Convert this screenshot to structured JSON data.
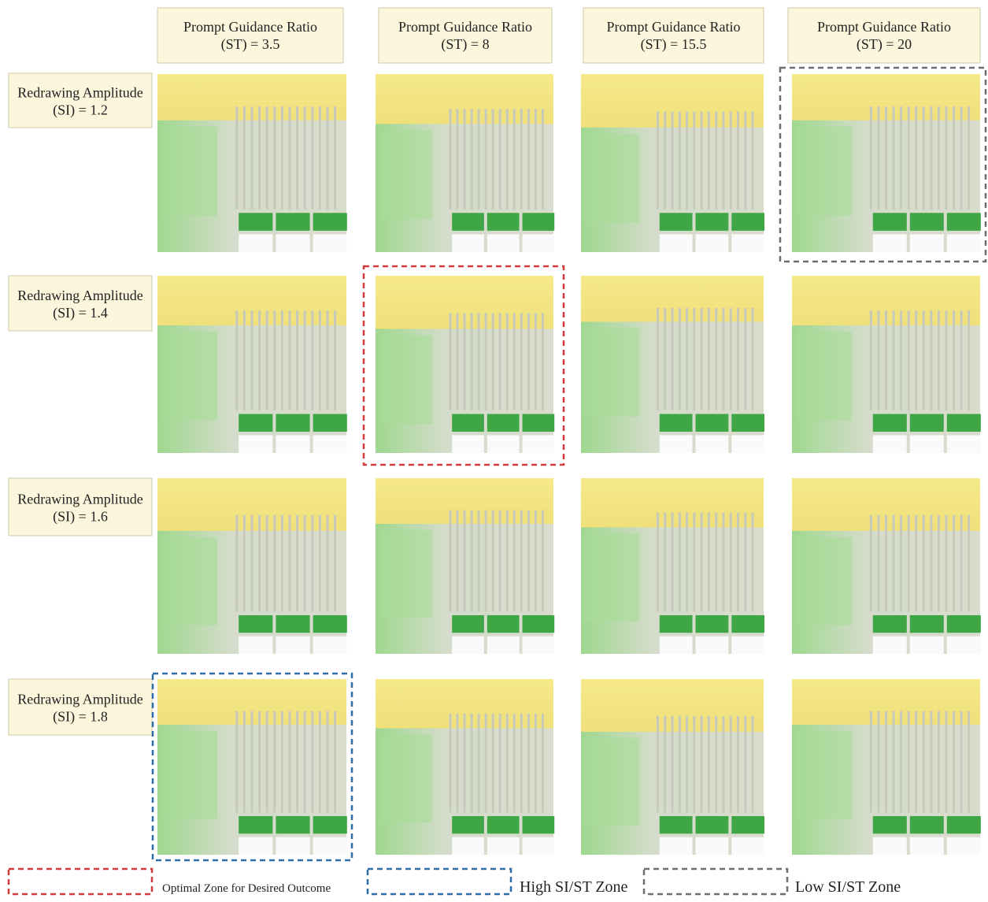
{
  "columns": [
    {
      "line1": "Prompt Guidance Ratio",
      "line2": "(ST) = 3.5"
    },
    {
      "line1": "Prompt Guidance Ratio",
      "line2": "(ST) = 8"
    },
    {
      "line1": "Prompt Guidance Ratio",
      "line2": "(ST) = 15.5"
    },
    {
      "line1": "Prompt Guidance Ratio",
      "line2": "(ST) = 20"
    }
  ],
  "rows": [
    {
      "line1": "Redrawing Amplitude",
      "line2": "(SI) = 1.2"
    },
    {
      "line1": "Redrawing Amplitude",
      "line2": "(SI) = 1.4"
    },
    {
      "line1": "Redrawing Amplitude",
      "line2": "(SI) = 1.6"
    },
    {
      "line1": "Redrawing Amplitude",
      "line2": "(SI) = 1.8"
    }
  ],
  "legend": [
    {
      "label": "Optimal Zone for Desired Outcome"
    },
    {
      "label": "High SI/ST Zone"
    },
    {
      "label": "Low SI/ST Zone"
    }
  ]
}
